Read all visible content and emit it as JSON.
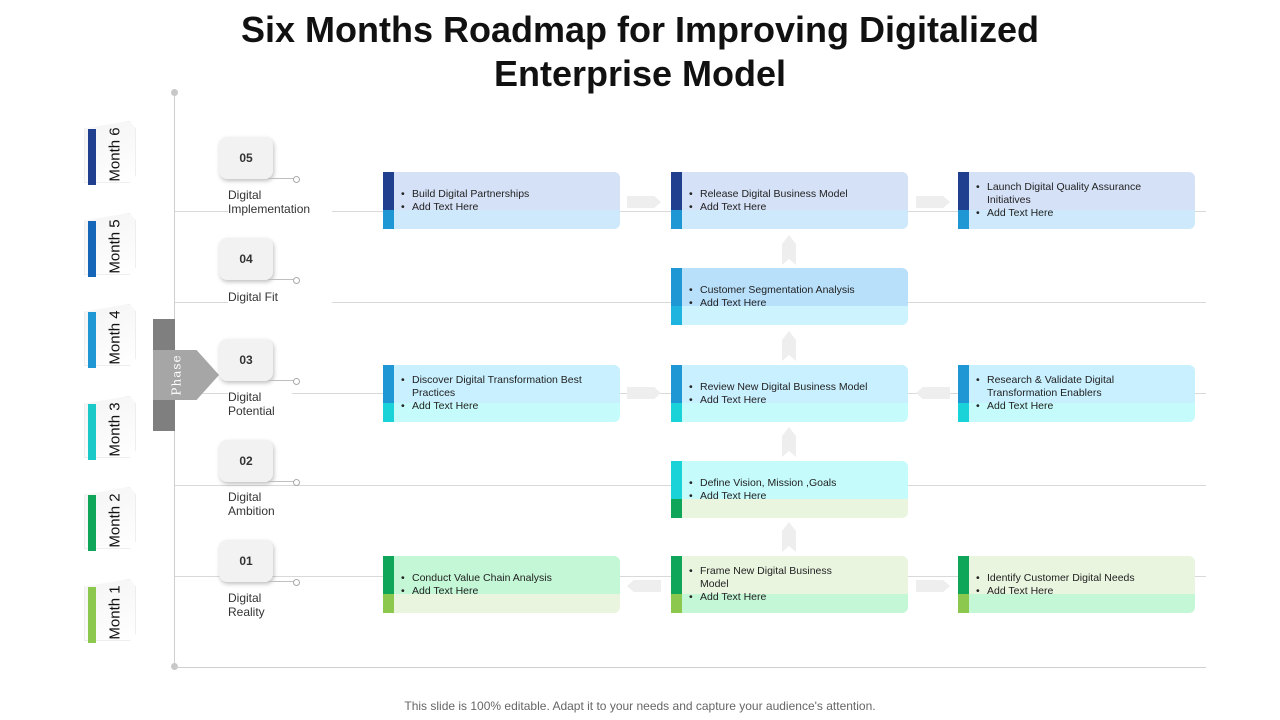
{
  "title": {
    "line1": "Six Months Roadmap for Improving Digitalized",
    "line2": "Enterprise Model"
  },
  "footer": "This slide is 100% editable. Adapt it to your needs and capture your audience's attention.",
  "phase_label": "Phase",
  "months": [
    {
      "label": "Month 6",
      "color": "#203f8f"
    },
    {
      "label": "Month 5",
      "color": "#1565b8"
    },
    {
      "label": "Month 4",
      "color": "#1f97d4"
    },
    {
      "label": "Month 3",
      "color": "#1cc9c9"
    },
    {
      "label": "Month 2",
      "color": "#10a65a"
    },
    {
      "label": "Month 1",
      "color": "#8cc74e"
    }
  ],
  "steps": [
    {
      "number": "05",
      "label": "Digital Implementation"
    },
    {
      "number": "04",
      "label": "Digital Fit"
    },
    {
      "number": "03",
      "label": "Digital Potential"
    },
    {
      "number": "02",
      "label": "Digital Ambition"
    },
    {
      "number": "01",
      "label": "Digital Reality"
    }
  ],
  "cards": [
    {
      "id": "build-digital-partnerships",
      "items": [
        "Build Digital Partnerships",
        "Add Text Here"
      ],
      "theme": "blue-dark"
    },
    {
      "id": "release-digital-business-model",
      "items": [
        "Release Digital Business Model",
        "Add Text Here"
      ],
      "theme": "blue-dark"
    },
    {
      "id": "launch-digital-qa",
      "items": [
        "Launch Digital  Quality Assurance Initiatives",
        "Add Text Here"
      ],
      "theme": "blue-dark"
    },
    {
      "id": "customer-segmentation",
      "items": [
        "Customer Segmentation  Analysis",
        "Add Text Here"
      ],
      "theme": "blue-mid"
    },
    {
      "id": "discover-best-practices",
      "items": [
        "Discover Digital Transformation Best Practices",
        "Add Text Here"
      ],
      "theme": "cyan"
    },
    {
      "id": "review-business-model",
      "items": [
        "Review New Digital Business Model",
        "Add Text Here"
      ],
      "theme": "cyan"
    },
    {
      "id": "research-validate-enablers",
      "items": [
        "Research & Validate Digital Transformation Enablers",
        "Add Text Here"
      ],
      "theme": "cyan"
    },
    {
      "id": "define-vision",
      "items": [
        "Define Vision, Mission ,Goals",
        "Add Text Here"
      ],
      "theme": "teal-green"
    },
    {
      "id": "conduct-value-chain",
      "items": [
        "Conduct Value Chain Analysis",
        "Add Text Here"
      ],
      "theme": "green-light"
    },
    {
      "id": "frame-business-model",
      "items": [
        "Frame New Digital Business Model",
        "Add Text Here"
      ],
      "theme": "green-mint"
    },
    {
      "id": "identify-customer-needs",
      "items": [
        "Identify Customer Digital  Needs",
        "Add Text Here"
      ],
      "theme": "green-mint"
    }
  ],
  "themes": {
    "blue-dark": {
      "ltop": "#203f8f",
      "lbot": "#1f97d4",
      "top": "#d5e1f7",
      "bottom": "#cde9fb"
    },
    "blue-mid": {
      "ltop": "#1f97d4",
      "lbot": "#1fb3e0",
      "top": "#b8e0fb",
      "bottom": "#cdf3ff"
    },
    "cyan": {
      "ltop": "#1f97d4",
      "lbot": "#19d3d8",
      "top": "#c8f0ff",
      "bottom": "#c5fbfb"
    },
    "teal-green": {
      "ltop": "#19d3d8",
      "lbot": "#10a65a",
      "top": "#c5fbfb",
      "bottom": "#eaf5e0"
    },
    "green-light": {
      "ltop": "#10a65a",
      "lbot": "#8cc74e",
      "top": "#c4f7d6",
      "bottom": "#eaf5e0"
    },
    "green-mint": {
      "ltop": "#10a65a",
      "lbot": "#8cc74e",
      "top": "#eaf5e0",
      "bottom": "#c4f7d6"
    }
  }
}
